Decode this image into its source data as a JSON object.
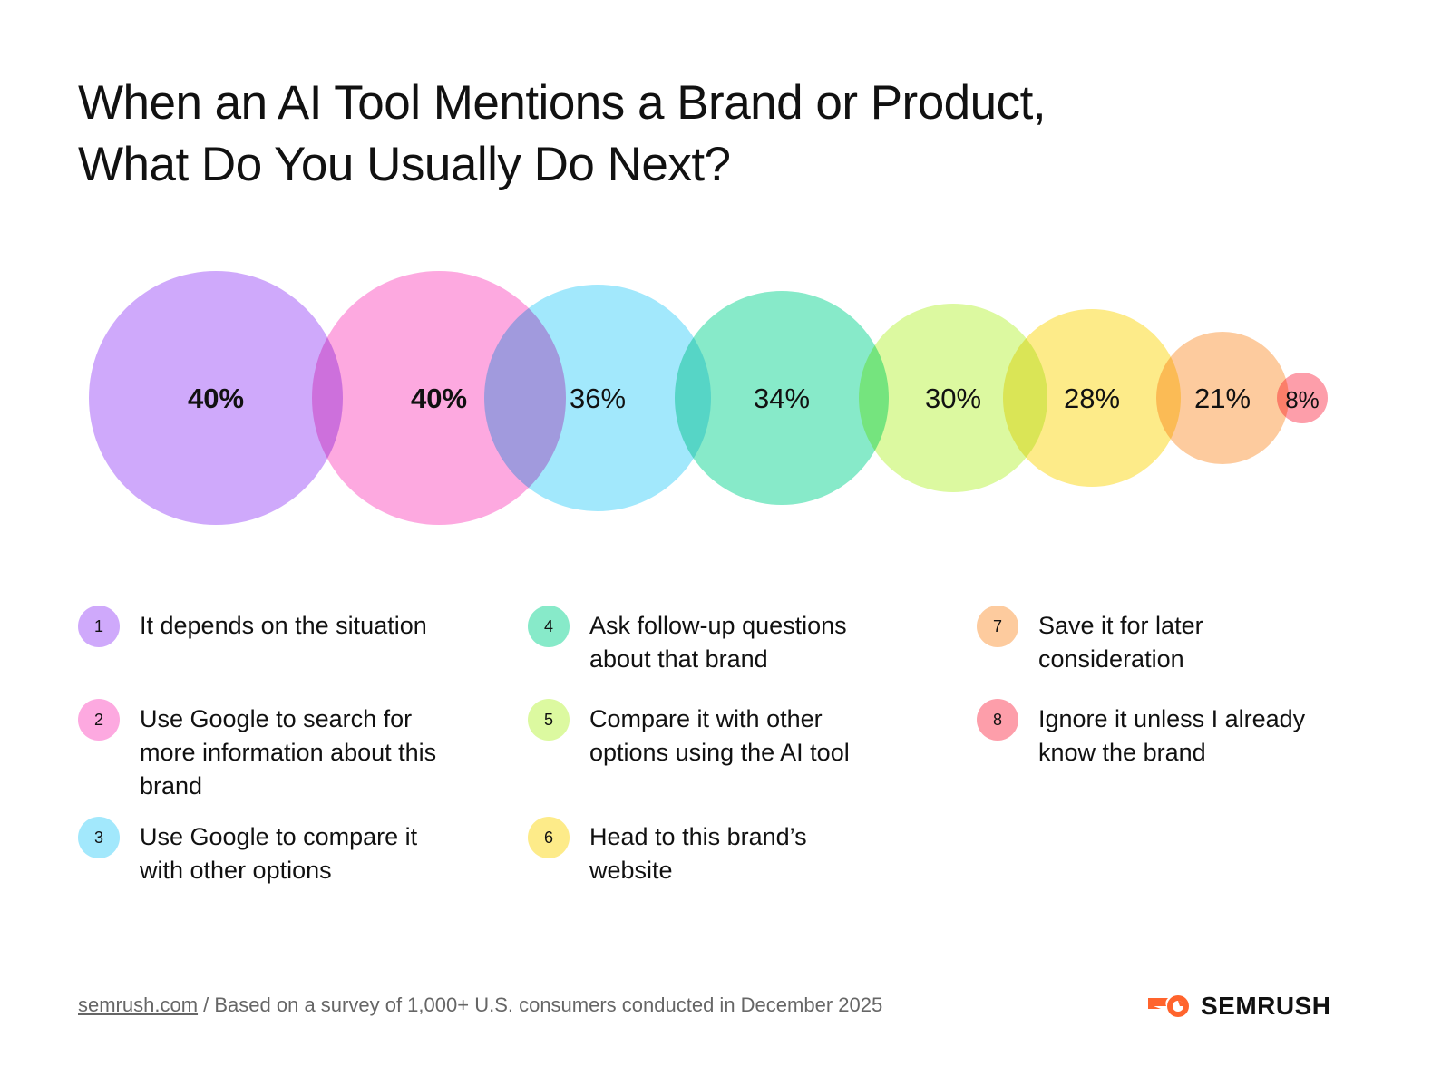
{
  "title": {
    "line1": "When an AI Tool Mentions a Brand or Product,",
    "line2": "What Do You Usually Do Next?"
  },
  "chart_data": {
    "type": "bubble",
    "title": "When an AI Tool Mentions a Brand or Product, What Do You Usually Do Next?",
    "unit": "%",
    "items": [
      {
        "number": "1",
        "label": "It depends on the situation",
        "value": 40,
        "display": "40%",
        "color": "#cfa9fb",
        "bold": true
      },
      {
        "number": "2",
        "label": "Use Google to search for more information about this brand",
        "value": 40,
        "display": "40%",
        "color": "#fda9e0",
        "bold": true
      },
      {
        "number": "3",
        "label": "Use Google to compare it with other options",
        "value": 36,
        "display": "36%",
        "color": "#a2e8fc",
        "bold": false
      },
      {
        "number": "4",
        "label": "Ask follow-up questions about that brand",
        "value": 34,
        "display": "34%",
        "color": "#87eac9",
        "bold": false
      },
      {
        "number": "5",
        "label": "Compare it with other options using the AI tool",
        "value": 30,
        "display": "30%",
        "color": "#dcf9a0",
        "bold": false
      },
      {
        "number": "6",
        "label": "Head to this brand’s website",
        "value": 28,
        "display": "28%",
        "color": "#fdeb89",
        "bold": false
      },
      {
        "number": "7",
        "label": "Save it for later consideration",
        "value": 21,
        "display": "21%",
        "color": "#fdcb9e",
        "bold": false
      },
      {
        "number": "8",
        "label": "Ignore it unless I already know the brand",
        "value": 8,
        "display": "8%",
        "color": "#fd9eaa",
        "bold": false
      }
    ]
  },
  "footer": {
    "link": "semrush.com",
    "note": " / Based on a survey of 1,000+ U.S. consumers conducted in December 2025"
  },
  "logo": {
    "text": "SEMRUSH",
    "color": "#ff642d"
  }
}
